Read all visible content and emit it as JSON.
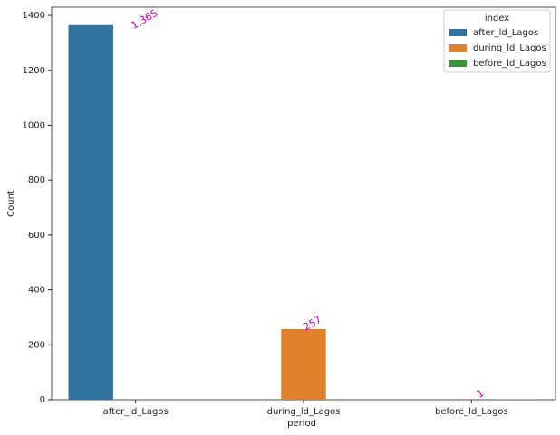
{
  "chart_data": {
    "type": "bar",
    "x_label": "period",
    "y_label": "Count",
    "categories": [
      "after_ld_Lagos",
      "during_ld_Lagos",
      "before_ld_Lagos"
    ],
    "series": [
      {
        "name": "after_ld_Lagos",
        "color": "#3274a1",
        "values": [
          1365,
          null,
          null
        ],
        "value_labels": [
          "1,365",
          null,
          null
        ]
      },
      {
        "name": "during_ld_Lagos",
        "color": "#e1812c",
        "values": [
          null,
          257,
          null
        ]
      },
      {
        "name": "before_ld_Lagos",
        "color": "#3a923a",
        "values": [
          null,
          null,
          1
        ]
      }
    ],
    "ylim": [
      0,
      1430
    ],
    "yticks": [
      0,
      200,
      400,
      600,
      800,
      1000,
      1200,
      1400
    ],
    "legend_title": "index",
    "legend": "upper right",
    "value_label_color": "#cc00cc"
  }
}
